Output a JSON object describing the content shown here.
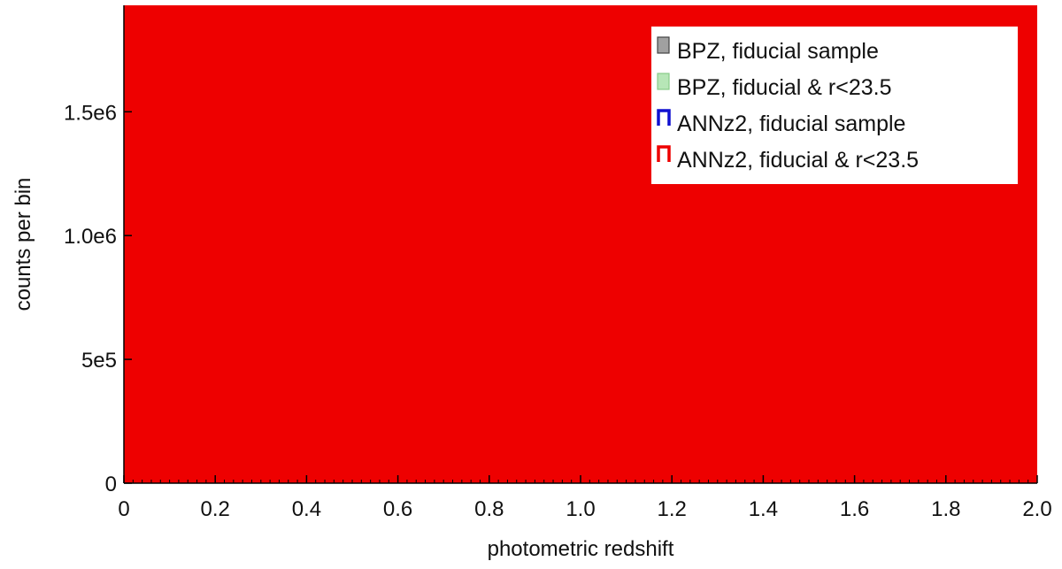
{
  "chart_data": {
    "type": "bar",
    "title": "",
    "xlabel": "photometric redshift",
    "ylabel": "counts per bin",
    "xlim": [
      0,
      2.0
    ],
    "ylim": [
      0,
      1930000
    ],
    "grid": false,
    "legend_position": "top-right",
    "x_ticks": [
      {
        "value": 0,
        "label": "0"
      },
      {
        "value": 0.2,
        "label": "0.2"
      },
      {
        "value": 0.4,
        "label": "0.4"
      },
      {
        "value": 0.6,
        "label": "0.6"
      },
      {
        "value": 0.8,
        "label": "0.8"
      },
      {
        "value": 1.0,
        "label": "1.0"
      },
      {
        "value": 1.2,
        "label": "1.2"
      },
      {
        "value": 1.4,
        "label": "1.4"
      },
      {
        "value": 1.6,
        "label": "1.6"
      },
      {
        "value": 1.8,
        "label": "1.8"
      },
      {
        "value": 2.0,
        "label": "2.0"
      }
    ],
    "y_ticks": [
      {
        "value": 0,
        "label": "0"
      },
      {
        "value": 500000,
        "label": "5e5"
      },
      {
        "value": 1000000,
        "label": "1.0e6"
      },
      {
        "value": 1500000,
        "label": "1.5e6"
      }
    ],
    "fill_color": "#ee0000",
    "series": [
      {
        "name": "BPZ, fiducial sample",
        "style": "filled",
        "color": "#a0a0a0",
        "edge": "#444444"
      },
      {
        "name": "BPZ, fiducial & r<23.5",
        "style": "filled",
        "color": "#b7e6b7",
        "edge": "#88cc88"
      },
      {
        "name": "ANNz2, fiducial sample",
        "style": "step",
        "color": "#1010d0"
      },
      {
        "name": "ANNz2, fiducial & r<23.5",
        "style": "step",
        "color": "#ee0000"
      }
    ]
  }
}
